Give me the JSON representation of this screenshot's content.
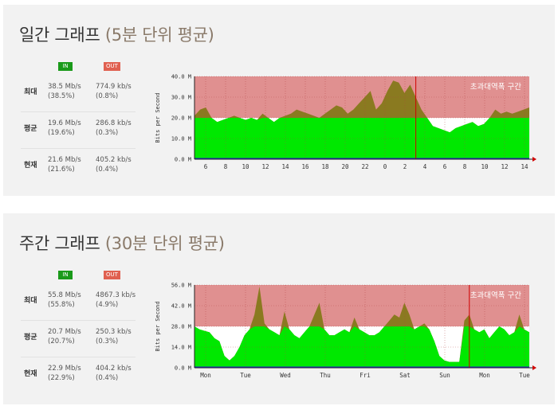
{
  "daily": {
    "title_main": "일간 그래프",
    "title_paren": "(5분 단위 평균)",
    "legend": {
      "in": "IN",
      "out": "OUT"
    },
    "stats": [
      {
        "label": "최대",
        "in_rate": "38.5 Mb/s",
        "in_pct": "(38.5%)",
        "out_rate": "774.9 kb/s",
        "out_pct": "(0.8%)"
      },
      {
        "label": "평균",
        "in_rate": "19.6 Mb/s",
        "in_pct": "(19.6%)",
        "out_rate": "286.8 kb/s",
        "out_pct": "(0.3%)"
      },
      {
        "label": "현재",
        "in_rate": "21.6 Mb/s",
        "in_pct": "(21.6%)",
        "out_rate": "405.2 kb/s",
        "out_pct": "(0.4%)"
      }
    ],
    "chart_data": {
      "type": "area",
      "ylabel": "Bits per Second",
      "yticks": [
        "0.0 M",
        "10.0 M",
        "20.0 M",
        "30.0 M",
        "40.0 M"
      ],
      "ylim": [
        0,
        40
      ],
      "threshold": 20,
      "zone_label": "초과대역폭 구간",
      "xticks": [
        "6",
        "8",
        "10",
        "12",
        "14",
        "16",
        "18",
        "20",
        "22",
        "0",
        "2",
        "4",
        "6",
        "8",
        "10",
        "12",
        "14"
      ],
      "series": [
        {
          "values": [
            21,
            24,
            25,
            20,
            18,
            19,
            20,
            21,
            20,
            19,
            20,
            19,
            22,
            20,
            18,
            20,
            21,
            22,
            24,
            23,
            22,
            21,
            20,
            22,
            24,
            26,
            25,
            22,
            24,
            27,
            30,
            33,
            24,
            27,
            33,
            38,
            37,
            32,
            36,
            30,
            24,
            20,
            16,
            15,
            14,
            13,
            15,
            16,
            17,
            18,
            16,
            17,
            20,
            24,
            22,
            23,
            22,
            23,
            24,
            25
          ]
        }
      ],
      "marker_index": 39,
      "colors": {
        "fill": "#00e800",
        "over": "#8a7a20",
        "zone": "#e09090",
        "out": "#2222cc"
      }
    }
  },
  "weekly": {
    "title_main": "주간 그래프",
    "title_paren": "(30분 단위 평균)",
    "legend": {
      "in": "IN",
      "out": "OUT"
    },
    "stats": [
      {
        "label": "최대",
        "in_rate": "55.8 Mb/s",
        "in_pct": "(55.8%)",
        "out_rate": "4867.3 kb/s",
        "out_pct": "(4.9%)"
      },
      {
        "label": "평균",
        "in_rate": "20.7 Mb/s",
        "in_pct": "(20.7%)",
        "out_rate": "250.3 kb/s",
        "out_pct": "(0.3%)"
      },
      {
        "label": "현재",
        "in_rate": "22.9 Mb/s",
        "in_pct": "(22.9%)",
        "out_rate": "404.2 kb/s",
        "out_pct": "(0.4%)"
      }
    ],
    "chart_data": {
      "type": "area",
      "ylabel": "Bits per Second",
      "yticks": [
        "0.0 M",
        "14.0 M",
        "28.0 M",
        "42.0 M",
        "56.0 M"
      ],
      "ylim": [
        0,
        56
      ],
      "threshold": 28,
      "zone_label": "초과대역폭 구간",
      "xticks": [
        "Mon",
        "Tue",
        "Wed",
        "Thu",
        "Fri",
        "Sat",
        "Sun",
        "Mon",
        "Tue"
      ],
      "series": [
        {
          "values": [
            28,
            26,
            25,
            24,
            20,
            18,
            8,
            5,
            8,
            14,
            22,
            26,
            36,
            55,
            30,
            26,
            24,
            22,
            38,
            26,
            22,
            20,
            24,
            28,
            36,
            44,
            26,
            22,
            22,
            24,
            26,
            24,
            34,
            26,
            24,
            22,
            22,
            24,
            28,
            32,
            36,
            34,
            44,
            36,
            26,
            28,
            30,
            26,
            18,
            8,
            5,
            4,
            4,
            4,
            32,
            36,
            26,
            24,
            26,
            20,
            24,
            28,
            26,
            22,
            24,
            36,
            26,
            24
          ]
        }
      ],
      "marker_index": 55,
      "colors": {
        "fill": "#00e800",
        "over": "#8a7a20",
        "zone": "#e09090",
        "out": "#2222cc"
      }
    }
  }
}
